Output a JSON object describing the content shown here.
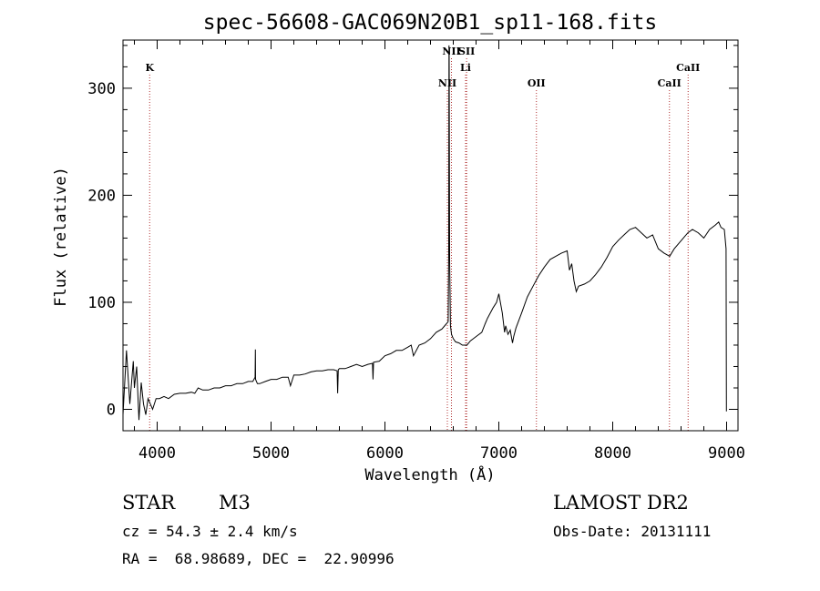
{
  "chart_data": {
    "type": "line",
    "title": "spec-56608-GAC069N20B1_sp11-168.fits",
    "xlabel": "Wavelength (Å)",
    "ylabel": "Flux (relative)",
    "xlim": [
      3700,
      9100
    ],
    "ylim": [
      -20,
      345
    ],
    "xticks": [
      4000,
      5000,
      6000,
      7000,
      8000,
      9000
    ],
    "yticks": [
      0,
      100,
      200,
      300
    ],
    "grid": false,
    "series": [
      {
        "color": "#000000",
        "x": [
          3700,
          3730,
          3760,
          3790,
          3800,
          3820,
          3840,
          3860,
          3880,
          3900,
          3920,
          3940,
          3960,
          3990,
          4020,
          4060,
          4100,
          4150,
          4200,
          4250,
          4300,
          4330,
          4360,
          4400,
          4450,
          4500,
          4550,
          4600,
          4650,
          4700,
          4750,
          4800,
          4840,
          4860,
          4862,
          4864,
          4880,
          4900,
          4950,
          5000,
          5050,
          5100,
          5150,
          5170,
          5200,
          5250,
          5300,
          5350,
          5400,
          5450,
          5500,
          5550,
          5580,
          5585,
          5590,
          5600,
          5650,
          5700,
          5750,
          5800,
          5850,
          5890,
          5895,
          5900,
          5950,
          6000,
          6050,
          6100,
          6150,
          6200,
          6230,
          6250,
          6300,
          6350,
          6400,
          6450,
          6500,
          6540,
          6555,
          6560,
          6562,
          6564,
          6568,
          6575,
          6585,
          6600,
          6620,
          6650,
          6680,
          6700,
          6720,
          6750,
          6800,
          6850,
          6880,
          6900,
          6950,
          6980,
          7000,
          7030,
          7050,
          7060,
          7080,
          7100,
          7120,
          7130,
          7150,
          7200,
          7250,
          7300,
          7350,
          7400,
          7450,
          7500,
          7550,
          7600,
          7620,
          7640,
          7660,
          7680,
          7700,
          7750,
          7800,
          7850,
          7900,
          7950,
          8000,
          8050,
          8100,
          8150,
          8200,
          8250,
          8300,
          8350,
          8400,
          8450,
          8500,
          8540,
          8580,
          8620,
          8660,
          8700,
          8750,
          8800,
          8850,
          8900,
          8930,
          8950,
          8980,
          8995,
          8998
        ],
        "values": [
          -5,
          55,
          5,
          45,
          20,
          40,
          -10,
          25,
          5,
          -5,
          10,
          5,
          0,
          10,
          10,
          12,
          10,
          14,
          15,
          15,
          16,
          15,
          20,
          18,
          18,
          20,
          20,
          22,
          22,
          24,
          24,
          26,
          26,
          30,
          56,
          28,
          24,
          24,
          26,
          28,
          28,
          30,
          30,
          22,
          32,
          32,
          33,
          35,
          36,
          36,
          37,
          37,
          36,
          15,
          37,
          38,
          38,
          40,
          42,
          40,
          42,
          43,
          28,
          44,
          45,
          50,
          52,
          55,
          55,
          58,
          60,
          50,
          60,
          62,
          66,
          72,
          75,
          80,
          82,
          150,
          340,
          330,
          140,
          78,
          70,
          66,
          63,
          62,
          60,
          60,
          60,
          64,
          68,
          72,
          80,
          85,
          95,
          100,
          108,
          90,
          72,
          78,
          70,
          74,
          62,
          68,
          76,
          90,
          105,
          115,
          125,
          133,
          140,
          143,
          146,
          148,
          130,
          136,
          120,
          110,
          115,
          117,
          120,
          126,
          133,
          142,
          152,
          158,
          163,
          168,
          170,
          165,
          160,
          163,
          150,
          146,
          143,
          150,
          155,
          160,
          165,
          168,
          165,
          160,
          168,
          172,
          175,
          170,
          168,
          150,
          -2
        ]
      }
    ],
    "lines": [
      {
        "label": "K",
        "x": 3934,
        "row": 1
      },
      {
        "label": "NII",
        "x": 6548,
        "row": 2
      },
      {
        "label": "NII",
        "x": 6584,
        "row": 0
      },
      {
        "label": "SII",
        "x": 6717,
        "row": 0
      },
      {
        "label": "Li",
        "x": 6708,
        "row": 1
      },
      {
        "label": "OII",
        "x": 7330,
        "row": 2
      },
      {
        "label": "CaII",
        "x": 8498,
        "row": 2
      },
      {
        "label": "CaII",
        "x": 8662,
        "row": 1
      }
    ]
  },
  "info": {
    "class": "STAR",
    "subclass": "M3",
    "cz": "cz = 54.3 ± 2.4 km/s",
    "coords": "RA =  68.98689, DEC =  22.90996",
    "survey": "LAMOST DR2",
    "obsdate": "Obs-Date: 20131111"
  }
}
